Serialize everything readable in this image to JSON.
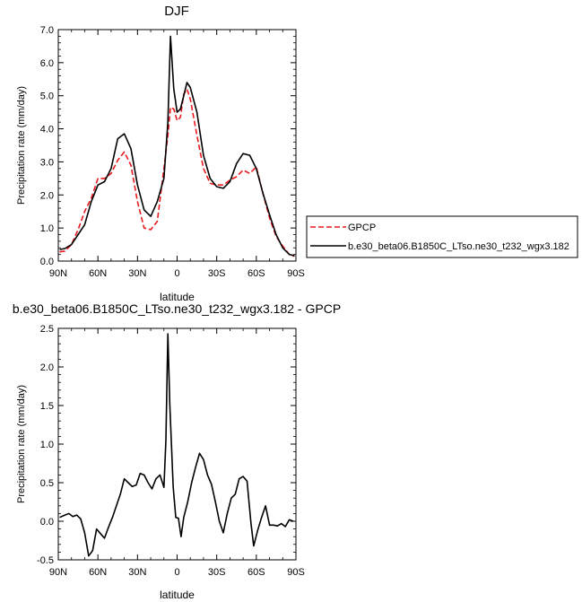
{
  "chart_data": [
    {
      "type": "line",
      "title": "DJF",
      "xlabel": "latitude",
      "ylabel": "Precipitation rate (mm/day)",
      "xlim": [
        90,
        -90
      ],
      "ylim": [
        0,
        7
      ],
      "xticks": [
        90,
        60,
        30,
        0,
        -30,
        -60,
        -90
      ],
      "xtick_labels": [
        "90N",
        "60N",
        "30N",
        "0",
        "30S",
        "60S",
        "90S"
      ],
      "yticks": [
        0,
        1,
        2,
        3,
        4,
        5,
        6,
        7
      ],
      "ytick_labels": [
        "0.0",
        "1.0",
        "2.0",
        "3.0",
        "4.0",
        "5.0",
        "6.0",
        "7.0"
      ],
      "grid": false,
      "legend": "right",
      "series": [
        {
          "name": "GPCP",
          "color": "#e8191c",
          "dash": "dashed",
          "x": [
            89,
            85,
            80,
            75,
            70,
            65,
            60,
            55,
            50,
            45,
            40,
            35,
            30,
            25,
            20,
            15,
            10,
            7,
            5,
            2.5,
            0,
            -2.5,
            -5,
            -7.5,
            -10,
            -15,
            -20,
            -25,
            -30,
            -35,
            -40,
            -45,
            -50,
            -55,
            -60,
            -65,
            -70,
            -75,
            -80,
            -85,
            -89
          ],
          "y": [
            0.28,
            0.3,
            0.5,
            0.95,
            1.5,
            1.9,
            2.5,
            2.5,
            2.65,
            3.05,
            3.3,
            2.9,
            1.8,
            1.0,
            0.95,
            1.2,
            2.8,
            3.8,
            4.65,
            4.6,
            4.25,
            4.35,
            5.05,
            5.2,
            4.9,
            3.8,
            2.8,
            2.35,
            2.3,
            2.3,
            2.45,
            2.55,
            2.75,
            2.65,
            2.85,
            2.05,
            1.3,
            0.75,
            0.45,
            0.2,
            0.14
          ]
        },
        {
          "name": "b.e30_beta06.B1850C_LTso.ne30_t232_wgx3.182",
          "color": "#000000",
          "dash": "solid",
          "x": [
            89,
            85,
            80,
            75,
            70,
            65,
            60,
            55,
            50,
            45,
            40,
            35,
            30,
            25,
            20,
            15,
            10,
            7,
            5,
            2.5,
            0,
            -2.5,
            -5,
            -7.5,
            -10,
            -15,
            -20,
            -25,
            -30,
            -35,
            -40,
            -45,
            -50,
            -55,
            -60,
            -65,
            -70,
            -75,
            -80,
            -85,
            -89
          ],
          "y": [
            0.35,
            0.38,
            0.5,
            0.8,
            1.1,
            1.8,
            2.3,
            2.4,
            2.8,
            3.7,
            3.85,
            3.4,
            2.3,
            1.55,
            1.35,
            1.8,
            2.5,
            4.2,
            6.8,
            5.2,
            4.5,
            4.6,
            5.0,
            5.4,
            5.25,
            4.5,
            3.2,
            2.5,
            2.25,
            2.2,
            2.4,
            2.95,
            3.25,
            3.2,
            2.8,
            2.05,
            1.4,
            0.8,
            0.4,
            0.2,
            0.16
          ]
        }
      ]
    },
    {
      "type": "line",
      "title": "b.e30_beta06.B1850C_LTso.ne30_t232_wgx3.182 - GPCP",
      "xlabel": "latitude",
      "ylabel": "Precipitation rate (mm/day)",
      "xlim": [
        90,
        -90
      ],
      "ylim": [
        -0.5,
        2.5
      ],
      "xticks": [
        90,
        60,
        30,
        0,
        -30,
        -60,
        -90
      ],
      "xtick_labels": [
        "90N",
        "60N",
        "30N",
        "0",
        "30S",
        "60S",
        "90S"
      ],
      "yticks": [
        -0.5,
        0,
        0.5,
        1,
        1.5,
        2,
        2.5
      ],
      "ytick_labels": [
        "-0.5",
        "0.0",
        "0.5",
        "1.0",
        "1.5",
        "2.0",
        "2.5"
      ],
      "grid": false,
      "series": [
        {
          "color": "#000000",
          "dash": "solid",
          "x": [
            89,
            85,
            82,
            79,
            76,
            73,
            70,
            67,
            64,
            61,
            58,
            55,
            52,
            49,
            46,
            43,
            40,
            37,
            34,
            31,
            28,
            25,
            22,
            19,
            16,
            13,
            10,
            8.5,
            7,
            5.5,
            3,
            1,
            -1,
            -3,
            -5,
            -8,
            -11,
            -14,
            -17,
            -20,
            -23,
            -26,
            -29,
            -32,
            -35,
            -38,
            -41,
            -44,
            -47,
            -50,
            -53,
            -56,
            -58,
            -61,
            -64,
            -67,
            -70,
            -73,
            -76,
            -79,
            -82,
            -85,
            -88
          ],
          "y": [
            0.05,
            0.08,
            0.1,
            0.06,
            0.08,
            0.03,
            -0.15,
            -0.45,
            -0.38,
            -0.1,
            -0.16,
            -0.22,
            -0.08,
            0.05,
            0.2,
            0.35,
            0.55,
            0.5,
            0.45,
            0.47,
            0.62,
            0.6,
            0.5,
            0.42,
            0.55,
            0.6,
            0.44,
            1.05,
            2.43,
            1.5,
            0.45,
            0.05,
            0.04,
            -0.2,
            0.05,
            0.25,
            0.5,
            0.7,
            0.88,
            0.8,
            0.6,
            0.48,
            0.25,
            0.0,
            -0.15,
            0.1,
            0.3,
            0.35,
            0.55,
            0.58,
            0.52,
            -0.03,
            -0.32,
            -0.12,
            0.05,
            0.2,
            -0.05,
            -0.05,
            -0.06,
            -0.03,
            -0.07,
            0.02,
            0.0
          ]
        }
      ]
    }
  ]
}
